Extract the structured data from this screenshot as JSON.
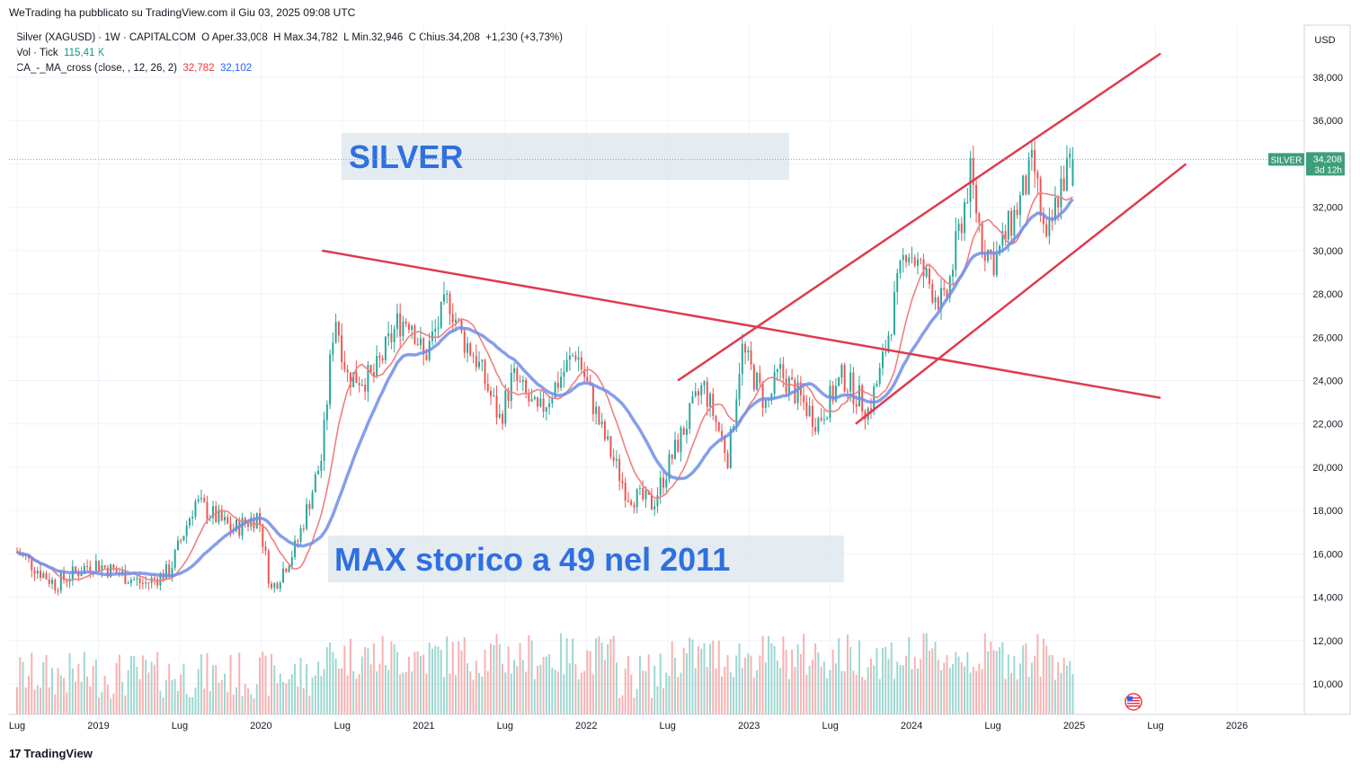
{
  "header": "WeTrading ha pubblicato su TradingView.com il Giu 03, 2025 09:08 UTC",
  "legend": {
    "symbol": "Silver (XAGUSD) · 1W · CAPITALCOM",
    "o_label": "O",
    "o_value": "Aper.33,008",
    "h_label": "H",
    "h_value": "Max.34,782",
    "l_label": "L",
    "l_value": "Min.32,946",
    "c_label": "C",
    "c_value": "Chius.34,208",
    "change": "+1,230 (+3,73%)",
    "vol_label": "Vol · Tick",
    "vol_value": "115,41 K",
    "ma_label": "CA_-_MA_cross (close, , 12, 26, 2)",
    "ma_fast": "32,782",
    "ma_slow": "32,102"
  },
  "currency": "USD",
  "price_tag": {
    "symbol": "SILVER",
    "price": "34,208",
    "countdown": "3d 12h"
  },
  "annotations": {
    "title": "SILVER",
    "note": "MAX storico a 49 nel 2011"
  },
  "footer": {
    "brand": "TradingView",
    "logo": "17"
  },
  "colors": {
    "up": "#26a69a",
    "down": "#ef5350",
    "ma_fast": "#f08080",
    "ma_slow": "#6f8ee8",
    "trendline": "#e03a4e",
    "tag": "#3f9e7a",
    "annotation_bg": "#dfe8ee",
    "annotation_text": "#2f6fe0"
  },
  "chart_data": {
    "type": "candlestick",
    "title": "Silver (XAGUSD) · 1W · CAPITALCOM",
    "ylim": [
      8.8,
      40
    ],
    "y_ticks": [
      "10,000",
      "12,000",
      "14,000",
      "16,000",
      "18,000",
      "20,000",
      "22,000",
      "24,000",
      "26,000",
      "28,000",
      "30,000",
      "32,000",
      "34,000",
      "36,000",
      "38,000"
    ],
    "x_ticks": [
      "Lug",
      "2019",
      "Lug",
      "2020",
      "Lug",
      "2021",
      "Lug",
      "2022",
      "Lug",
      "2023",
      "Lug",
      "2024",
      "Lug",
      "2025",
      "Lug",
      "2026"
    ],
    "x_range": [
      "2018-07",
      "2026-07"
    ],
    "price_anchors": [
      [
        "2018-07",
        16.1
      ],
      [
        "2018-10",
        14.6
      ],
      [
        "2019-01",
        15.6
      ],
      [
        "2019-05",
        14.6
      ],
      [
        "2019-07",
        15.2
      ],
      [
        "2019-09",
        18.4
      ],
      [
        "2019-12",
        17.1
      ],
      [
        "2020-02",
        17.8
      ],
      [
        "2020-03",
        14.3
      ],
      [
        "2020-05",
        16.4
      ],
      [
        "2020-07",
        20.5
      ],
      [
        "2020-08",
        27.2
      ],
      [
        "2020-09",
        24.2
      ],
      [
        "2020-11",
        24.1
      ],
      [
        "2021-01",
        26.7
      ],
      [
        "2021-02",
        26.9
      ],
      [
        "2021-03",
        25.0
      ],
      [
        "2021-05",
        27.8
      ],
      [
        "2021-06",
        26.0
      ],
      [
        "2021-07",
        25.2
      ],
      [
        "2021-09",
        22.2
      ],
      [
        "2021-10",
        24.2
      ],
      [
        "2021-12",
        22.4
      ],
      [
        "2022-03",
        25.4
      ],
      [
        "2022-05",
        21.7
      ],
      [
        "2022-07",
        18.8
      ],
      [
        "2022-09",
        18.3
      ],
      [
        "2022-11",
        21.1
      ],
      [
        "2023-01",
        23.8
      ],
      [
        "2023-03",
        20.4
      ],
      [
        "2023-04",
        25.5
      ],
      [
        "2023-06",
        22.8
      ],
      [
        "2023-07",
        24.4
      ],
      [
        "2023-10",
        22.1
      ],
      [
        "2023-12",
        24.2
      ],
      [
        "2024-02",
        22.6
      ],
      [
        "2024-03",
        24.5
      ],
      [
        "2024-05",
        30.3
      ],
      [
        "2024-06",
        29.2
      ],
      [
        "2024-08",
        27.4
      ],
      [
        "2024-10",
        33.5
      ],
      [
        "2024-11",
        30.3
      ],
      [
        "2024-12",
        29.5
      ],
      [
        "2025-02",
        32.4
      ],
      [
        "2025-03",
        34.0
      ],
      [
        "2025-04",
        30.0
      ],
      [
        "2025-05",
        32.8
      ],
      [
        "2025-06",
        34.2
      ]
    ],
    "series": [
      {
        "name": "MA 12",
        "source": "close"
      },
      {
        "name": "MA 26",
        "source": "close"
      }
    ],
    "volume": {
      "label": "Vol · Tick",
      "last": "115,41 K"
    },
    "trendlines": [
      {
        "from": [
          "2020-07",
          30.0
        ],
        "to": [
          "2026-01",
          23.2
        ]
      },
      {
        "from": [
          "2022-11",
          24.0
        ],
        "to": [
          "2026-01",
          39.1
        ]
      },
      {
        "from": [
          "2024-01",
          22.0
        ],
        "to": [
          "2026-03",
          34.0
        ]
      }
    ]
  }
}
